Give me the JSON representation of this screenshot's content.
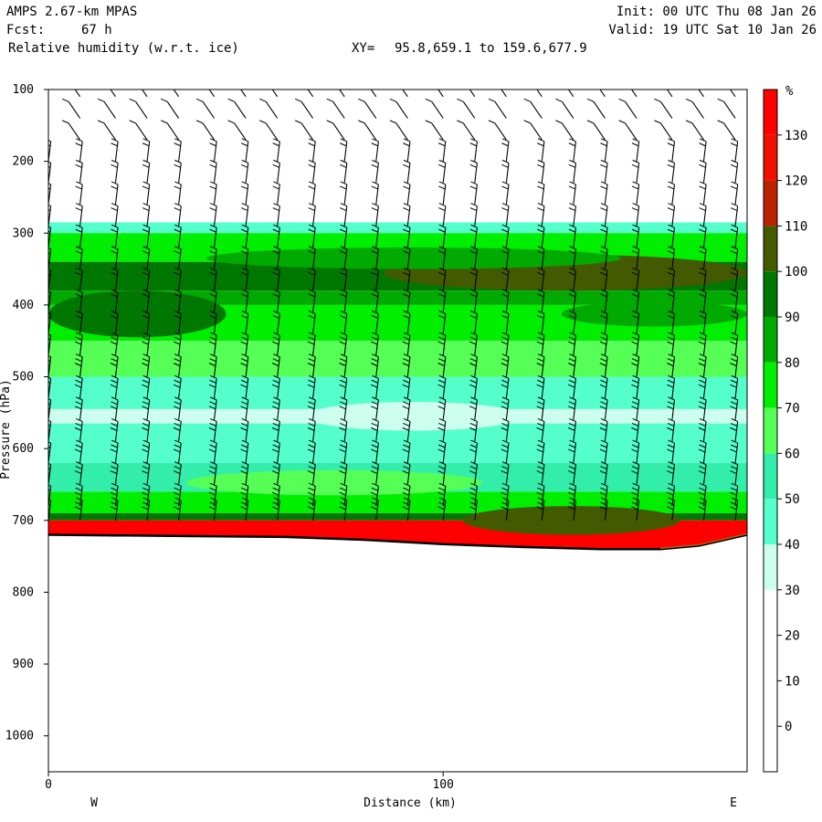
{
  "header": {
    "model": "AMPS 2.67-km MPAS",
    "fcst_label": "Fcst:",
    "fcst_value": "67 h",
    "field": "Relative humidity (w.r.t. ice)",
    "xy_label": "XY=",
    "xy_range": "95.8,659.1 to 159.6,677.9",
    "init": "Init: 00 UTC Thu 08 Jan 26",
    "valid": "Valid: 19 UTC Sat 10 Jan 26"
  },
  "chart_data": {
    "type": "heatmap",
    "title": "Relative humidity (w.r.t. ice)",
    "xlabel": "Distance (km)",
    "ylabel": "Pressure (hPa)",
    "xlim": [
      0,
      177
    ],
    "ylim": [
      1050,
      100
    ],
    "x_ticks": [
      0,
      100
    ],
    "y_ticks": [
      100,
      200,
      300,
      400,
      500,
      600,
      700,
      800,
      900,
      1000
    ],
    "left_end_label": "W",
    "right_end_label": "E",
    "colorbar": {
      "unit": "%",
      "levels": [
        130,
        120,
        110,
        100,
        90,
        80,
        70,
        60,
        50,
        40,
        30,
        20,
        10,
        0
      ],
      "bins": [
        {
          "min": 130,
          "color": "#ff0000"
        },
        {
          "min": 120,
          "color": "#ee1100"
        },
        {
          "min": 110,
          "color": "#bb2200"
        },
        {
          "min": 100,
          "color": "#445a00"
        },
        {
          "min": 90,
          "color": "#007700"
        },
        {
          "min": 80,
          "color": "#00aa00"
        },
        {
          "min": 70,
          "color": "#00ee00"
        },
        {
          "min": 60,
          "color": "#55ff55"
        },
        {
          "min": 50,
          "color": "#33eeaa"
        },
        {
          "min": 40,
          "color": "#55ffcc"
        },
        {
          "min": 30,
          "color": "#ccffee"
        },
        {
          "min": 20,
          "color": "#ffffff"
        },
        {
          "min": 10,
          "color": "#ffffff"
        },
        {
          "min": 0,
          "color": "#ffffff"
        },
        {
          "min": -10,
          "color": "#ffffff"
        }
      ]
    },
    "terrain_surface": {
      "x": [
        0,
        20,
        40,
        60,
        80,
        100,
        120,
        140,
        155,
        165,
        177
      ],
      "p": [
        720,
        721,
        722,
        723,
        727,
        733,
        737,
        740,
        740,
        735,
        720
      ]
    },
    "humidity_layers": [
      {
        "p_top": 285,
        "p_bottom": 300,
        "value": 40
      },
      {
        "p_top": 300,
        "p_bottom": 340,
        "value": 75
      },
      {
        "p_top": 340,
        "p_bottom": 380,
        "value": 95
      },
      {
        "p_top": 380,
        "p_bottom": 400,
        "value": 85
      },
      {
        "p_top": 400,
        "p_bottom": 450,
        "value": 75
      },
      {
        "p_top": 450,
        "p_bottom": 500,
        "value": 65
      },
      {
        "p_top": 500,
        "p_bottom": 545,
        "value": 45
      },
      {
        "p_top": 545,
        "p_bottom": 565,
        "value": 35
      },
      {
        "p_top": 565,
        "p_bottom": 620,
        "value": 45
      },
      {
        "p_top": 620,
        "p_bottom": 660,
        "value": 55
      },
      {
        "p_top": 660,
        "p_bottom": 690,
        "value": 75
      },
      {
        "p_top": 690,
        "p_bottom": 700,
        "value": 90
      },
      {
        "p_top": 700,
        "p_bottom": 740,
        "value": 130
      }
    ],
    "humidity_patches": [
      {
        "x0": 0,
        "x1": 45,
        "p_top": 380,
        "p_bottom": 445,
        "value": 95
      },
      {
        "x0": 85,
        "x1": 177,
        "p_top": 330,
        "p_bottom": 380,
        "value": 105
      },
      {
        "x0": 40,
        "x1": 145,
        "p_top": 320,
        "p_bottom": 350,
        "value": 85
      },
      {
        "x0": 65,
        "x1": 120,
        "p_top": 535,
        "p_bottom": 575,
        "value": 35
      },
      {
        "x0": 0,
        "x1": 60,
        "p_top": 455,
        "p_bottom": 490,
        "value": 60
      },
      {
        "x0": 130,
        "x1": 177,
        "p_top": 395,
        "p_bottom": 430,
        "value": 85
      },
      {
        "x0": 105,
        "x1": 160,
        "p_top": 680,
        "p_bottom": 720,
        "value": 105
      },
      {
        "x0": 35,
        "x1": 110,
        "p_top": 630,
        "p_bottom": 665,
        "value": 65
      }
    ],
    "wind_barb_columns_km": [
      0,
      8,
      17,
      25,
      33,
      42,
      50,
      58,
      67,
      75,
      83,
      91,
      100,
      108,
      116,
      125,
      133,
      141,
      149,
      158,
      166,
      174
    ],
    "wind_barb_levels_hpa": [
      110,
      140,
      170,
      200,
      230,
      260,
      290,
      320,
      350,
      380,
      410,
      440,
      470,
      500,
      530,
      560,
      590,
      620,
      650,
      680,
      700
    ]
  }
}
